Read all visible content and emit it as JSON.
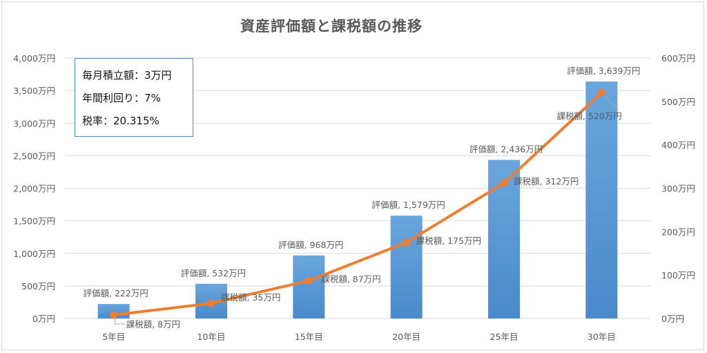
{
  "title": "資産評価額と課税額の推移",
  "info_box": {
    "lines": [
      "毎月積立額：3万円",
      "年間利回り：7%",
      "税率：20.315%"
    ]
  },
  "colors": {
    "bar": "#5b9bd5",
    "line": "#ed7d31",
    "grid": "#d9d9d9",
    "text": "#595959"
  },
  "chart_data": {
    "type": "bar",
    "categories": [
      "5年目",
      "10年目",
      "15年目",
      "20年目",
      "25年目",
      "30年目"
    ],
    "left_axis": {
      "min": 0,
      "max": 4000,
      "step": 500,
      "tick_labels": [
        "0万円",
        "500万円",
        "1,000万円",
        "1,500万円",
        "2,000万円",
        "2,500万円",
        "3,000万円",
        "3,500万円",
        "4,000万円"
      ]
    },
    "right_axis": {
      "min": 0,
      "max": 600,
      "step": 100,
      "tick_labels": [
        "0万円",
        "100万円",
        "200万円",
        "300万円",
        "400万円",
        "500万円",
        "600万円"
      ]
    },
    "series": [
      {
        "name": "評価額",
        "kind": "bar",
        "axis": "left",
        "values": [
          222,
          532,
          968,
          1579,
          2436,
          3639
        ],
        "data_labels": [
          "評価額, 222万円",
          "評価額, 532万円",
          "評価額, 968万円",
          "評価額, 1,579万円",
          "評価額, 2,436万円",
          "評価額, 3,639万円"
        ]
      },
      {
        "name": "課税額",
        "kind": "line",
        "axis": "right",
        "values": [
          8,
          35,
          87,
          175,
          312,
          520
        ],
        "data_labels": [
          "課税額, 8万円",
          "課税額, 35万円",
          "課税額, 87万円",
          "課税額, 175万円",
          "課税額, 312万円",
          "課税額, 520万円"
        ]
      }
    ],
    "grid": true,
    "legend": "none"
  }
}
